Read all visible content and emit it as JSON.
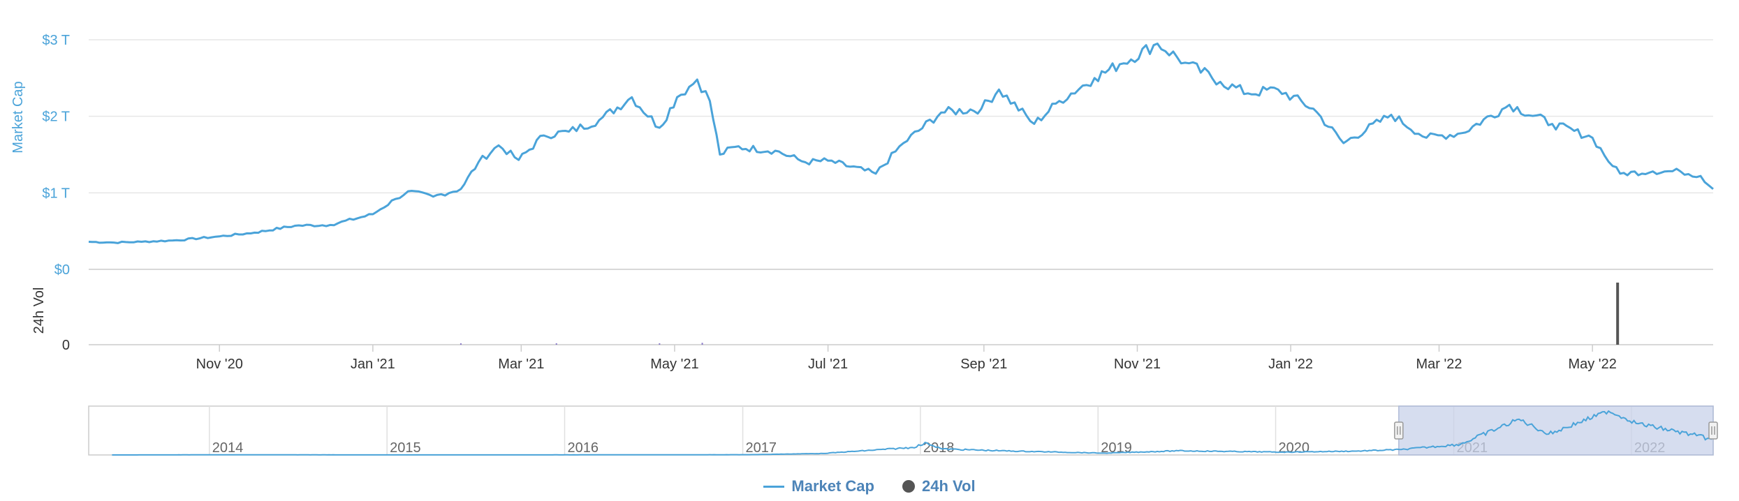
{
  "colors": {
    "market_cap": "#4aa3d9",
    "volume": "#555555",
    "axis_label": "#4aa3d9",
    "navigator_fill": "#c8d2ea"
  },
  "legend": {
    "market_cap": "Market Cap",
    "volume": "24h Vol"
  },
  "chart_data": [
    {
      "type": "line",
      "title": "",
      "ylabel": "Market Cap",
      "ytick_labels": [
        "$0",
        "$1 T",
        "$2 T",
        "$3 T"
      ],
      "ylim": [
        0,
        3
      ],
      "y_unit": "trillion USD",
      "x_range": [
        "2020-09-10",
        "2022-06-18"
      ],
      "xtick_labels": [
        "Nov '20",
        "Jan '21",
        "Mar '21",
        "May '21",
        "Jul '21",
        "Sep '21",
        "Nov '21",
        "Jan '22",
        "Mar '22",
        "May '22"
      ],
      "series": [
        {
          "name": "Market Cap",
          "x": [
            "2020-09-10",
            "2020-09-20",
            "2020-10-01",
            "2020-10-15",
            "2020-11-01",
            "2020-11-15",
            "2020-12-01",
            "2020-12-15",
            "2021-01-01",
            "2021-01-10",
            "2021-01-15",
            "2021-01-25",
            "2021-02-05",
            "2021-02-12",
            "2021-02-20",
            "2021-02-28",
            "2021-03-10",
            "2021-03-20",
            "2021-04-01",
            "2021-04-14",
            "2021-04-25",
            "2021-05-02",
            "2021-05-10",
            "2021-05-15",
            "2021-05-19",
            "2021-05-25",
            "2021-06-10",
            "2021-06-22",
            "2021-07-01",
            "2021-07-20",
            "2021-07-31",
            "2021-08-15",
            "2021-08-31",
            "2021-09-07",
            "2021-09-21",
            "2021-10-01",
            "2021-10-15",
            "2021-10-25",
            "2021-11-09",
            "2021-11-20",
            "2021-12-04",
            "2021-12-15",
            "2021-12-27",
            "2022-01-10",
            "2022-01-22",
            "2022-02-10",
            "2022-02-24",
            "2022-03-10",
            "2022-03-29",
            "2022-04-15",
            "2022-05-01",
            "2022-05-09",
            "2022-05-12",
            "2022-05-25",
            "2022-06-05",
            "2022-06-13",
            "2022-06-18"
          ],
          "values": [
            0.36,
            0.35,
            0.36,
            0.38,
            0.43,
            0.48,
            0.57,
            0.58,
            0.72,
            0.92,
            1.02,
            0.95,
            1.05,
            1.4,
            1.62,
            1.43,
            1.75,
            1.8,
            1.95,
            2.25,
            1.85,
            2.25,
            2.48,
            2.2,
            1.5,
            1.6,
            1.55,
            1.4,
            1.42,
            1.25,
            1.65,
            2.05,
            2.1,
            2.35,
            1.9,
            2.2,
            2.5,
            2.68,
            2.95,
            2.7,
            2.45,
            2.3,
            2.35,
            2.1,
            1.65,
            2.02,
            1.72,
            1.78,
            2.15,
            1.9,
            1.72,
            1.35,
            1.25,
            1.28,
            1.28,
            1.22,
            1.05
          ]
        },
        {
          "name": "24h Vol",
          "x": [
            "2021-02-05",
            "2021-03-15",
            "2021-04-25",
            "2021-05-12",
            "2022-05-11"
          ],
          "values": [
            0.02,
            0.02,
            0.02,
            0.03,
            1.0
          ]
        }
      ],
      "volume_panel": {
        "ylabel": "24h Vol",
        "ytick_labels": [
          "0"
        ]
      },
      "grid": true,
      "legend_position": "bottom-center"
    },
    {
      "type": "area",
      "role": "navigator",
      "xtick_labels": [
        "2014",
        "2015",
        "2016",
        "2017",
        "2018",
        "2019",
        "2020",
        "2021",
        "2022"
      ],
      "series": [
        {
          "name": "Market Cap",
          "x": [
            "2013-06",
            "2014-01",
            "2015-01",
            "2016-01",
            "2017-01",
            "2017-06",
            "2017-12",
            "2018-01",
            "2018-02",
            "2018-06",
            "2019-01",
            "2019-06",
            "2020-01",
            "2020-06",
            "2020-09",
            "2021-01",
            "2021-05",
            "2021-07",
            "2021-11",
            "2022-01",
            "2022-05",
            "2022-06"
          ],
          "values": [
            0.0,
            0.01,
            0.005,
            0.007,
            0.018,
            0.1,
            0.5,
            0.8,
            0.4,
            0.28,
            0.12,
            0.28,
            0.19,
            0.26,
            0.36,
            0.72,
            2.4,
            1.4,
            2.95,
            2.1,
            1.3,
            1.05
          ]
        }
      ],
      "selected_range": [
        "2020-09-10",
        "2022-06-18"
      ]
    }
  ]
}
